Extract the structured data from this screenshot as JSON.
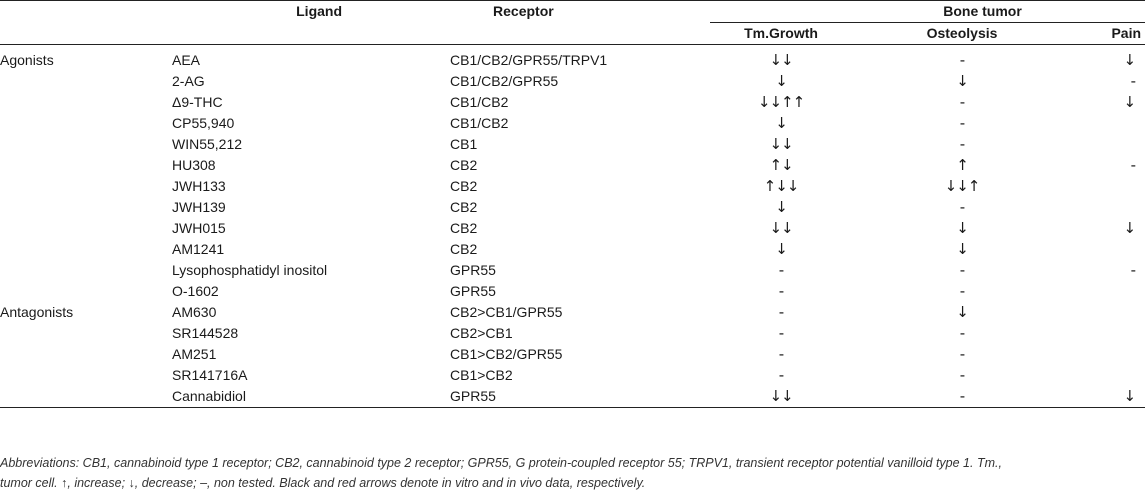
{
  "headers": {
    "ligand": "Ligand",
    "receptor": "Receptor",
    "bone_tumor": "Bone tumor",
    "growth": "Tm.Growth",
    "osteolysis": "Osteolysis",
    "pain": "Pain"
  },
  "rows": [
    {
      "category": "Agonists",
      "ligand": "AEA",
      "receptor": "CB1/CB2/GPR55/TRPV1",
      "growth": "↓↓",
      "osteolysis": "-",
      "pain": "↓"
    },
    {
      "category": "",
      "ligand": "2-AG",
      "receptor": "CB1/CB2/GPR55",
      "growth": "↓",
      "osteolysis": "↓",
      "pain": "-"
    },
    {
      "category": "",
      "ligand": "Δ9-THC",
      "receptor": "CB1/CB2",
      "growth": "↓↓↑↑",
      "osteolysis": "-",
      "pain": "↓"
    },
    {
      "category": "",
      "ligand": "CP55,940",
      "receptor": "CB1/CB2",
      "growth": "↓",
      "osteolysis": "-",
      "pain": ""
    },
    {
      "category": "",
      "ligand": "WIN55,212",
      "receptor": "CB1",
      "growth": "↓↓",
      "osteolysis": "-",
      "pain": ""
    },
    {
      "category": "",
      "ligand": "HU308",
      "receptor": "CB2",
      "growth": "↑↓",
      "osteolysis": "↑",
      "pain": "-"
    },
    {
      "category": "",
      "ligand": "JWH133",
      "receptor": "CB2",
      "growth": "↑↓↓",
      "osteolysis": "↓↓↑",
      "pain": ""
    },
    {
      "category": "",
      "ligand": "JWH139",
      "receptor": "CB2",
      "growth": "↓",
      "osteolysis": "-",
      "pain": ""
    },
    {
      "category": "",
      "ligand": "JWH015",
      "receptor": "CB2",
      "growth": "↓↓",
      "osteolysis": "↓",
      "pain": "↓"
    },
    {
      "category": "",
      "ligand": "AM1241",
      "receptor": "CB2",
      "growth": "↓",
      "osteolysis": "↓",
      "pain": ""
    },
    {
      "category": "",
      "ligand": "Lysophosphatidyl inositol",
      "receptor": "GPR55",
      "growth": "-",
      "osteolysis": "-",
      "pain": "-"
    },
    {
      "category": "",
      "ligand": "O-1602",
      "receptor": "GPR55",
      "growth": "-",
      "osteolysis": "-",
      "pain": ""
    },
    {
      "category": "Antagonists",
      "ligand": "AM630",
      "receptor": "CB2>CB1/GPR55",
      "growth": "-",
      "osteolysis": "↓",
      "pain": ""
    },
    {
      "category": "",
      "ligand": "SR144528",
      "receptor": "CB2>CB1",
      "growth": "-",
      "osteolysis": "-",
      "pain": ""
    },
    {
      "category": "",
      "ligand": "AM251",
      "receptor": "CB1>CB2/GPR55",
      "growth": "-",
      "osteolysis": "-",
      "pain": ""
    },
    {
      "category": "",
      "ligand": "SR141716A",
      "receptor": "CB1>CB2",
      "growth": "-",
      "osteolysis": "-",
      "pain": ""
    },
    {
      "category": "",
      "ligand": "Cannabidiol",
      "receptor": "GPR55",
      "growth": "↓↓",
      "osteolysis": "-",
      "pain": "↓"
    }
  ],
  "footnote": {
    "line1": "Abbreviations: CB1, cannabinoid type 1 receptor; CB2, cannabinoid type 2 receptor; GPR55, G protein-coupled receptor 55; TRPV1, transient receptor potential vanilloid type 1. Tm.,",
    "line2": "tumor cell. ↑, increase; ↓, decrease; –, non tested. Black and red arrows denote in vitro and in vivo data, respectively."
  }
}
